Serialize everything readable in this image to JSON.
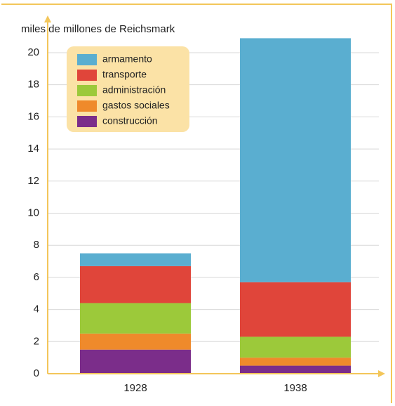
{
  "chart_data": {
    "type": "stacked_bar",
    "title": "miles de millones de Reichsmark",
    "categories": [
      "1928",
      "1938"
    ],
    "series": [
      {
        "name": "armamento",
        "color": "#5aaed0",
        "values": [
          0.8,
          15.2
        ]
      },
      {
        "name": "transporte",
        "color": "#e0453a",
        "values": [
          2.3,
          3.4
        ]
      },
      {
        "name": "administración",
        "color": "#9cc93a",
        "values": [
          1.9,
          1.3
        ]
      },
      {
        "name": "gastos sociales",
        "color": "#ef8a2b",
        "values": [
          1.0,
          0.5
        ]
      },
      {
        "name": "construcción",
        "color": "#7b2d8a",
        "values": [
          1.5,
          0.5
        ]
      }
    ],
    "ylim": [
      0,
      21.5
    ],
    "yticks": [
      0,
      2,
      4,
      6,
      8,
      10,
      12,
      14,
      16,
      18,
      20
    ],
    "grid": true,
    "legend": "top-left"
  }
}
